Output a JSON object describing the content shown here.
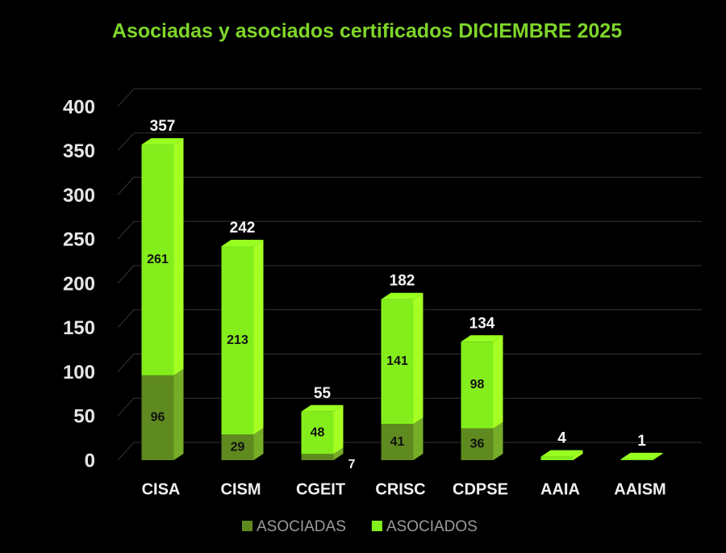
{
  "chart_data": {
    "type": "stacked-bar-3d",
    "title": "Asociadas y asociados certificados DICIEMBRE 2025",
    "categories": [
      "CISA",
      "CISM",
      "CGEIT",
      "CRISC",
      "CDPSE",
      "AAIA",
      "AAISM"
    ],
    "series": [
      {
        "name": "ASOCIADAS",
        "color": "#5e8a1f",
        "values": [
          96,
          29,
          7,
          41,
          36,
          0,
          0
        ],
        "value_labels": [
          "96",
          "29",
          "7",
          "41",
          "36",
          null,
          null
        ]
      },
      {
        "name": "ASOCIADOS",
        "color": "#84ee1c",
        "values": [
          261,
          213,
          48,
          141,
          98,
          4,
          1
        ],
        "value_labels": [
          "261",
          "213",
          "48",
          "141",
          "98",
          null,
          null
        ]
      }
    ],
    "totals": [
      357,
      242,
      55,
      182,
      134,
      4,
      1
    ],
    "ylim": [
      0,
      400
    ],
    "yticks": [
      0,
      50,
      100,
      150,
      200,
      250,
      300,
      350,
      400
    ],
    "grid": true,
    "legend": "bottom"
  }
}
